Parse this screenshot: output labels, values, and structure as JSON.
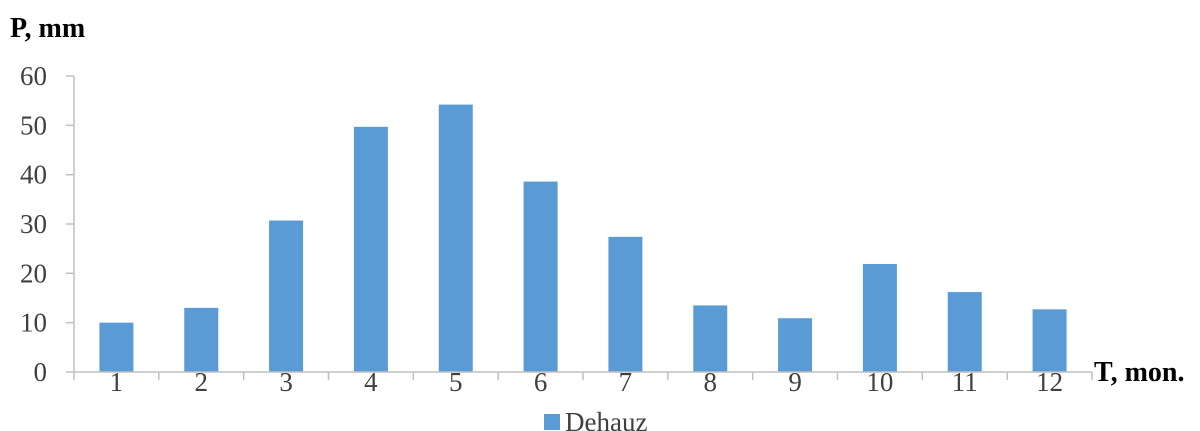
{
  "chart_data": {
    "type": "bar",
    "title": "",
    "xlabel": "T, mon.",
    "ylabel": "P, mm",
    "categories": [
      "1",
      "2",
      "3",
      "4",
      "5",
      "6",
      "7",
      "8",
      "9",
      "10",
      "11",
      "12"
    ],
    "series": [
      {
        "name": "Dehauz",
        "color": "#5b9bd5",
        "values": [
          10,
          13,
          30.7,
          49.7,
          54.2,
          38.6,
          27.4,
          13.5,
          10.9,
          21.9,
          16.2,
          12.7
        ]
      }
    ],
    "ylim": [
      0,
      60
    ],
    "yticks": [
      "0",
      "10",
      "20",
      "30",
      "40",
      "50",
      "60"
    ],
    "grid": false,
    "legend_position": "bottom"
  }
}
